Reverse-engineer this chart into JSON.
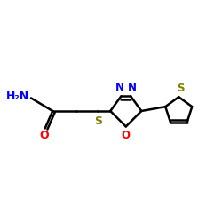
{
  "background_color": "#ffffff",
  "bond_color": "#000000",
  "atom_colors": {
    "N": "#0000ff",
    "O_carbonyl": "#ff0000",
    "O_ring": "#ff0000",
    "S_thioether": "#808000",
    "S_thiophene": "#808000",
    "C": "#000000"
  },
  "figsize": [
    2.5,
    2.5
  ],
  "dpi": 100,
  "lw": 1.8,
  "font_size": 9,
  "xlim": [
    0,
    10
  ],
  "ylim": [
    2,
    8
  ]
}
